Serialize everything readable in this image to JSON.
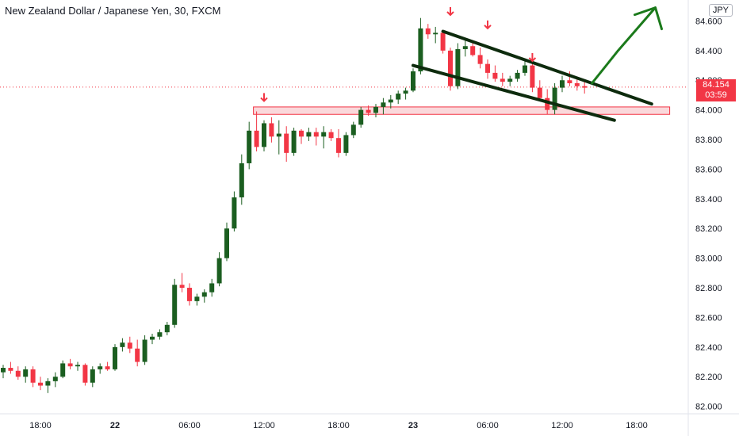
{
  "header": {
    "title": "New Zealand Dollar / Japanese Yen, 30, FXCM",
    "currency": "JPY"
  },
  "price_tag": {
    "price": "84.154",
    "countdown": "03:59"
  },
  "colors": {
    "up": "#1b5e20",
    "down": "#f23645",
    "zone_fill": "#f8c8cc",
    "zone_stroke": "#f23645",
    "channel": "#0d2b0d",
    "arrow_green": "#1b7a1b",
    "marker_red": "#f23645",
    "price_line": "#f23645"
  },
  "chart_data": {
    "type": "candlestick",
    "ylim": [
      81.95,
      84.72
    ],
    "xlim": [
      0,
      92
    ],
    "y_ticks": [
      84.6,
      84.4,
      84.2,
      84.0,
      83.8,
      83.6,
      83.4,
      83.2,
      83.0,
      82.8,
      82.6,
      82.4,
      82.2,
      82.0
    ],
    "y_tick_labels": [
      "84.600",
      "84.400",
      "84.200",
      "84.000",
      "83.800",
      "83.600",
      "83.400",
      "83.200",
      "83.000",
      "82.800",
      "82.600",
      "82.400",
      "82.200",
      "82.000"
    ],
    "x_ticks": [
      {
        "index": 5,
        "label": "18:00",
        "bold": false
      },
      {
        "index": 15,
        "label": "22",
        "bold": true
      },
      {
        "index": 25,
        "label": "06:00",
        "bold": false
      },
      {
        "index": 35,
        "label": "12:00",
        "bold": false
      },
      {
        "index": 45,
        "label": "18:00",
        "bold": false
      },
      {
        "index": 55,
        "label": "23",
        "bold": true
      },
      {
        "index": 65,
        "label": "06:00",
        "bold": false
      },
      {
        "index": 75,
        "label": "12:00",
        "bold": false
      },
      {
        "index": 85,
        "label": "18:00",
        "bold": false
      }
    ],
    "candles": [
      [
        82.23,
        82.28,
        82.19,
        82.26
      ],
      [
        82.26,
        82.3,
        82.22,
        82.24
      ],
      [
        82.24,
        82.27,
        82.18,
        82.2
      ],
      [
        82.2,
        82.27,
        82.16,
        82.25
      ],
      [
        82.25,
        82.27,
        82.13,
        82.16
      ],
      [
        82.16,
        82.2,
        82.11,
        82.14
      ],
      [
        82.14,
        82.19,
        82.09,
        82.17
      ],
      [
        82.17,
        82.23,
        82.13,
        82.2
      ],
      [
        82.2,
        82.31,
        82.19,
        82.29
      ],
      [
        82.29,
        82.32,
        82.25,
        82.27
      ],
      [
        82.27,
        82.3,
        82.24,
        82.28
      ],
      [
        82.28,
        82.29,
        82.14,
        82.16
      ],
      [
        82.16,
        82.27,
        82.13,
        82.25
      ],
      [
        82.25,
        82.29,
        82.22,
        82.27
      ],
      [
        82.27,
        82.3,
        82.24,
        82.25
      ],
      [
        82.25,
        82.42,
        82.24,
        82.4
      ],
      [
        82.4,
        82.46,
        82.37,
        82.43
      ],
      [
        82.43,
        82.47,
        82.36,
        82.39
      ],
      [
        82.39,
        82.45,
        82.27,
        82.3
      ],
      [
        82.3,
        82.48,
        82.28,
        82.45
      ],
      [
        82.45,
        82.49,
        82.42,
        82.47
      ],
      [
        82.47,
        82.52,
        82.45,
        82.5
      ],
      [
        82.5,
        82.57,
        82.48,
        82.55
      ],
      [
        82.55,
        82.86,
        82.53,
        82.82
      ],
      [
        82.82,
        82.9,
        82.77,
        82.8
      ],
      [
        82.8,
        82.83,
        82.68,
        82.71
      ],
      [
        82.71,
        82.76,
        82.68,
        82.74
      ],
      [
        82.74,
        82.79,
        82.7,
        82.77
      ],
      [
        82.77,
        82.86,
        82.74,
        82.83
      ],
      [
        82.83,
        83.04,
        82.81,
        83.0
      ],
      [
        83.0,
        83.24,
        82.98,
        83.2
      ],
      [
        83.2,
        83.45,
        83.18,
        83.41
      ],
      [
        83.41,
        83.7,
        83.36,
        83.64
      ],
      [
        83.64,
        83.92,
        83.6,
        83.86
      ],
      [
        83.86,
        83.99,
        83.72,
        83.75
      ],
      [
        83.75,
        83.93,
        83.72,
        83.91
      ],
      [
        83.91,
        83.95,
        83.78,
        83.82
      ],
      [
        83.82,
        83.93,
        83.7,
        83.84
      ],
      [
        83.84,
        83.89,
        83.65,
        83.71
      ],
      [
        83.71,
        83.88,
        83.69,
        83.86
      ],
      [
        83.86,
        83.87,
        83.77,
        83.82
      ],
      [
        83.82,
        83.88,
        83.79,
        83.85
      ],
      [
        83.85,
        83.88,
        83.76,
        83.82
      ],
      [
        83.82,
        83.89,
        83.74,
        83.85
      ],
      [
        83.85,
        83.87,
        83.79,
        83.81
      ],
      [
        83.81,
        83.87,
        83.68,
        83.71
      ],
      [
        83.71,
        83.85,
        83.69,
        83.83
      ],
      [
        83.83,
        83.92,
        83.81,
        83.9
      ],
      [
        83.9,
        84.02,
        83.88,
        84.0
      ],
      [
        84.0,
        84.03,
        83.96,
        83.98
      ],
      [
        83.98,
        84.04,
        83.95,
        84.02
      ],
      [
        84.02,
        84.08,
        83.97,
        84.05
      ],
      [
        84.05,
        84.1,
        84.01,
        84.07
      ],
      [
        84.07,
        84.13,
        84.04,
        84.11
      ],
      [
        84.11,
        84.15,
        84.07,
        84.13
      ],
      [
        84.13,
        84.28,
        84.12,
        84.26
      ],
      [
        84.26,
        84.62,
        84.24,
        84.55
      ],
      [
        84.55,
        84.58,
        84.48,
        84.51
      ],
      [
        84.51,
        84.56,
        84.45,
        84.52
      ],
      [
        84.52,
        84.54,
        84.38,
        84.4
      ],
      [
        84.4,
        84.42,
        84.13,
        84.16
      ],
      [
        84.16,
        84.45,
        84.14,
        84.41
      ],
      [
        84.41,
        84.47,
        84.36,
        84.43
      ],
      [
        84.43,
        84.47,
        84.36,
        84.37
      ],
      [
        84.37,
        84.42,
        84.28,
        84.31
      ],
      [
        84.31,
        84.34,
        84.21,
        84.25
      ],
      [
        84.25,
        84.3,
        84.19,
        84.21
      ],
      [
        84.21,
        84.25,
        84.16,
        84.19
      ],
      [
        84.19,
        84.23,
        84.16,
        84.21
      ],
      [
        84.21,
        84.27,
        84.19,
        84.25
      ],
      [
        84.25,
        84.33,
        84.23,
        84.3
      ],
      [
        84.3,
        84.34,
        84.12,
        84.15
      ],
      [
        84.15,
        84.2,
        84.06,
        84.08
      ],
      [
        84.08,
        84.14,
        83.97,
        84.0
      ],
      [
        84.0,
        84.18,
        83.97,
        84.15
      ],
      [
        84.15,
        84.23,
        84.12,
        84.2
      ],
      [
        84.2,
        84.26,
        84.16,
        84.18
      ],
      [
        84.18,
        84.22,
        84.13,
        84.16
      ],
      [
        84.16,
        84.19,
        84.11,
        84.15
      ]
    ],
    "support_zone": {
      "y_top": 84.02,
      "y_bottom": 83.97,
      "x_start": 34,
      "x_end": 89
    },
    "channel_upper": {
      "x1": 59,
      "y1": 84.53,
      "x2": 87,
      "y2": 84.04
    },
    "channel_lower": {
      "x1": 55,
      "y1": 84.3,
      "x2": 82,
      "y2": 83.93
    },
    "arrow": {
      "points": [
        [
          79,
          84.18
        ],
        [
          82.5,
          84.4
        ],
        [
          87.5,
          84.69
        ]
      ]
    },
    "down_markers": [
      {
        "x": 35,
        "y": 84.06
      },
      {
        "x": 60,
        "y": 84.64
      },
      {
        "x": 65,
        "y": 84.55
      },
      {
        "x": 71,
        "y": 84.33
      }
    ],
    "last_price": 84.154
  }
}
